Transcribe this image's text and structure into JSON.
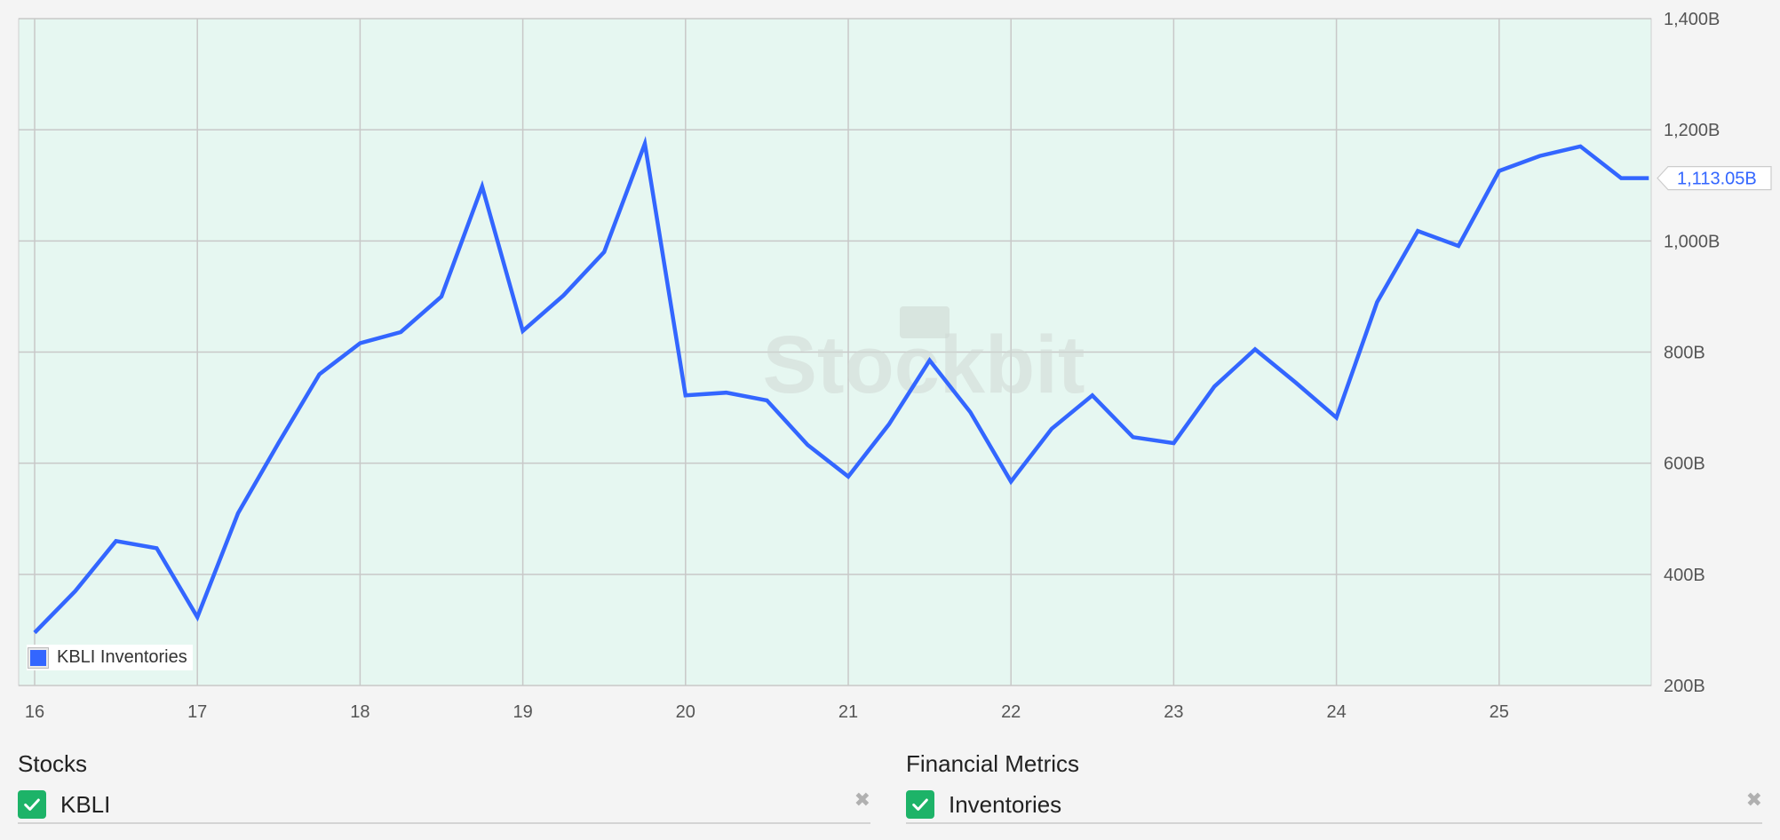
{
  "chart_data": {
    "type": "line",
    "x_ticks": [
      "16",
      "17",
      "18",
      "19",
      "20",
      "21",
      "22",
      "23",
      "24",
      "25"
    ],
    "y_ticks": [
      "1,400B",
      "1,200B",
      "1,000B",
      "800B",
      "600B",
      "400B",
      "200B"
    ],
    "ylim": [
      200,
      1400
    ],
    "xlim": [
      16,
      25.92
    ],
    "grid": true,
    "legend_position": "bottom-left",
    "watermark": "Stockbit",
    "last_value_label": "1,113.05B",
    "series": [
      {
        "name": "KBLI Inventories",
        "color": "#3366ff",
        "points": [
          [
            16.0,
            295
          ],
          [
            16.25,
            370
          ],
          [
            16.5,
            460
          ],
          [
            16.75,
            447
          ],
          [
            17.0,
            323
          ],
          [
            17.25,
            510
          ],
          [
            17.5,
            637
          ],
          [
            17.75,
            760
          ],
          [
            18.0,
            816
          ],
          [
            18.25,
            836
          ],
          [
            18.5,
            900
          ],
          [
            18.75,
            1098
          ],
          [
            19.0,
            838
          ],
          [
            19.25,
            902
          ],
          [
            19.5,
            980
          ],
          [
            19.75,
            1175
          ],
          [
            20.0,
            722
          ],
          [
            20.25,
            727
          ],
          [
            20.5,
            713
          ],
          [
            20.75,
            633
          ],
          [
            21.0,
            576
          ],
          [
            21.25,
            670
          ],
          [
            21.5,
            785
          ],
          [
            21.75,
            692
          ],
          [
            22.0,
            567
          ],
          [
            22.25,
            662
          ],
          [
            22.5,
            722
          ],
          [
            22.75,
            647
          ],
          [
            23.0,
            636
          ],
          [
            23.25,
            738
          ],
          [
            23.5,
            805
          ],
          [
            23.75,
            745
          ],
          [
            24.0,
            682
          ],
          [
            24.25,
            890
          ],
          [
            24.5,
            1018
          ],
          [
            24.75,
            991
          ],
          [
            25.0,
            1126
          ],
          [
            25.25,
            1153
          ],
          [
            25.5,
            1170
          ],
          [
            25.75,
            1113
          ],
          [
            25.92,
            1113
          ]
        ]
      }
    ]
  },
  "legend": {
    "label": "KBLI Inventories",
    "color": "#3366ff"
  },
  "stocks": {
    "title": "Stocks",
    "items": [
      {
        "label": "KBLI"
      }
    ]
  },
  "metrics": {
    "title": "Financial Metrics",
    "items": [
      {
        "label": "Inventories"
      }
    ]
  },
  "colors": {
    "plot_background": "#e6f7f1",
    "grid": "#c8c8c8",
    "line": "#3366ff",
    "check": "#1db368"
  },
  "icons": {
    "check": "check-icon",
    "remove": "close-icon"
  }
}
